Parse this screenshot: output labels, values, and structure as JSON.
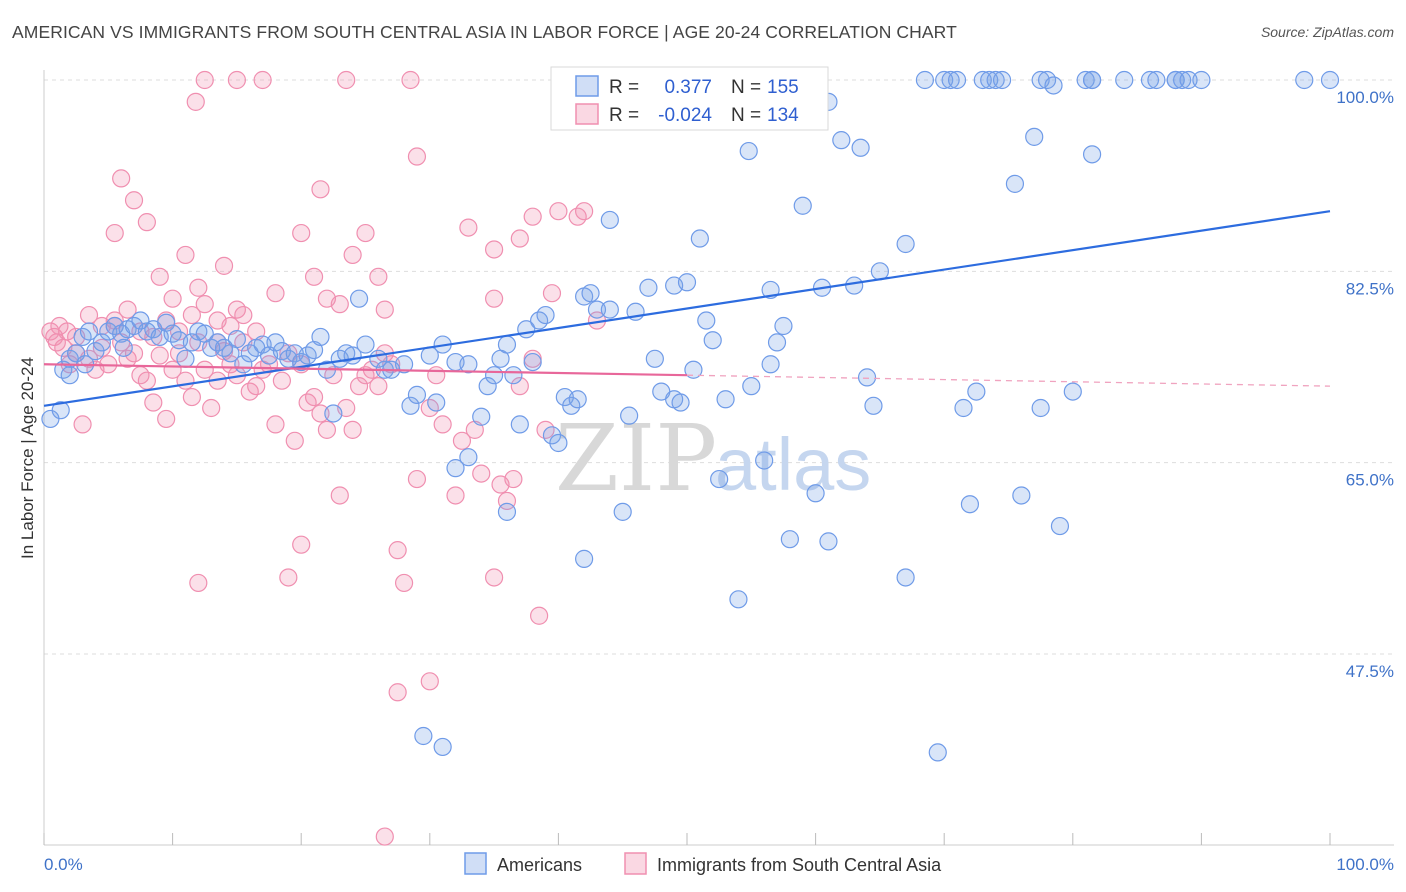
{
  "title": "AMERICAN VS IMMIGRANTS FROM SOUTH CENTRAL ASIA IN LABOR FORCE | AGE 20-24 CORRELATION CHART",
  "source": "Source: ZipAtlas.com",
  "watermark": {
    "zip": "ZIP",
    "atlas": "atlas"
  },
  "chart_data": {
    "type": "scatter",
    "ylabel": "In Labor Force | Age 20-24",
    "xlim": [
      0,
      100
    ],
    "ylim": [
      32,
      102
    ],
    "x_tick_labels": {
      "left": "0.0%",
      "right": "100.0%"
    },
    "y_ticks": [
      {
        "value": 100.0,
        "label": "100.0%"
      },
      {
        "value": 82.5,
        "label": "82.5%"
      },
      {
        "value": 65.0,
        "label": "65.0%"
      },
      {
        "value": 47.5,
        "label": "47.5%"
      }
    ],
    "legend_box": {
      "rows": [
        {
          "r_label": "R =",
          "r_value": "0.377",
          "n_label": "N =",
          "n_value": "155",
          "color": "#6f9be8"
        },
        {
          "r_label": "R =",
          "r_value": "-0.024",
          "n_label": "N =",
          "n_value": "134",
          "color": "#f08fb0"
        }
      ]
    },
    "series": [
      {
        "name": "Americans",
        "color": "#6f9be8",
        "fill": "rgba(120,160,230,0.28)",
        "trend": {
          "x1": 0,
          "y1": 70.2,
          "x2": 100,
          "y2": 88.0,
          "color": "#2d6cdf"
        },
        "points": [
          [
            0.5,
            69.0
          ],
          [
            1.3,
            69.8
          ],
          [
            1.5,
            73.5
          ],
          [
            2,
            74.5
          ],
          [
            2.5,
            75.0
          ],
          [
            3,
            76.5
          ],
          [
            3.5,
            77.0
          ],
          [
            4,
            75.2
          ],
          [
            4.5,
            76.0
          ],
          [
            5,
            77.0
          ],
          [
            5.5,
            77.5
          ],
          [
            6,
            76.8
          ],
          [
            6.5,
            77.2
          ],
          [
            7,
            77.5
          ],
          [
            7.5,
            78.0
          ],
          [
            8,
            77.0
          ],
          [
            8.5,
            77.2
          ],
          [
            9,
            76.5
          ],
          [
            9.5,
            77.8
          ],
          [
            10,
            76.8
          ],
          [
            10.5,
            76.2
          ],
          [
            11,
            74.5
          ],
          [
            11.5,
            76.0
          ],
          [
            12,
            77.0
          ],
          [
            12.5,
            76.8
          ],
          [
            13,
            75.5
          ],
          [
            13.5,
            76.0
          ],
          [
            14,
            75.5
          ],
          [
            14.5,
            75.0
          ],
          [
            15,
            76.3
          ],
          [
            15.5,
            74.0
          ],
          [
            16,
            75.0
          ],
          [
            16.5,
            75.5
          ],
          [
            17,
            75.8
          ],
          [
            17.5,
            74.8
          ],
          [
            18,
            76.0
          ],
          [
            18.5,
            75.2
          ],
          [
            19,
            74.5
          ],
          [
            19.5,
            75.0
          ],
          [
            20,
            74.2
          ],
          [
            20.5,
            74.8
          ],
          [
            21,
            75.3
          ],
          [
            21.5,
            76.5
          ],
          [
            22,
            73.5
          ],
          [
            22.5,
            69.5
          ],
          [
            23,
            74.5
          ],
          [
            23.5,
            75.0
          ],
          [
            24,
            74.8
          ],
          [
            24.5,
            80.0
          ],
          [
            25,
            75.8
          ],
          [
            26,
            74.5
          ],
          [
            26.5,
            73.5
          ],
          [
            27,
            73.5
          ],
          [
            28,
            74.0
          ],
          [
            28.5,
            70.2
          ],
          [
            29,
            71.2
          ],
          [
            30,
            74.8
          ],
          [
            30.5,
            70.5
          ],
          [
            31,
            75.8
          ],
          [
            32,
            74.2
          ],
          [
            32,
            64.5
          ],
          [
            33,
            74.0
          ],
          [
            33,
            65.5
          ],
          [
            34,
            69.2
          ],
          [
            34.5,
            72.0
          ],
          [
            35,
            73.0
          ],
          [
            35.5,
            74.5
          ],
          [
            36,
            75.8
          ],
          [
            36.5,
            73.0
          ],
          [
            37,
            68.5
          ],
          [
            37.5,
            77.2
          ],
          [
            38,
            74.2
          ],
          [
            38.5,
            78.0
          ],
          [
            39,
            78.5
          ],
          [
            39.5,
            67.5
          ],
          [
            40,
            66.8
          ],
          [
            40.5,
            71.0
          ],
          [
            41,
            70.2
          ],
          [
            41.5,
            70.8
          ],
          [
            42,
            56.2
          ],
          [
            42,
            80.2
          ],
          [
            42.5,
            80.5
          ],
          [
            43,
            79.0
          ],
          [
            44,
            79.0
          ],
          [
            44,
            87.2
          ],
          [
            45,
            60.5
          ],
          [
            45.5,
            69.3
          ],
          [
            46,
            78.8
          ],
          [
            47,
            81.0
          ],
          [
            47.5,
            74.5
          ],
          [
            48,
            71.5
          ],
          [
            49,
            70.8
          ],
          [
            49,
            81.2
          ],
          [
            49.5,
            70.5
          ],
          [
            50,
            81.5
          ],
          [
            50.5,
            73.5
          ],
          [
            51,
            85.5
          ],
          [
            51.5,
            78.0
          ],
          [
            52,
            76.2
          ],
          [
            52.5,
            63.5
          ],
          [
            53,
            70.8
          ],
          [
            54,
            52.5
          ],
          [
            54.5,
            100.0
          ],
          [
            54.8,
            93.5
          ],
          [
            55,
            72.0
          ],
          [
            56,
            65.2
          ],
          [
            56.5,
            74.0
          ],
          [
            56.5,
            80.8
          ],
          [
            57,
            76.0
          ],
          [
            57.5,
            77.5
          ],
          [
            58,
            58.0
          ],
          [
            59,
            88.5
          ],
          [
            60,
            62.2
          ],
          [
            60.5,
            81.0
          ],
          [
            61,
            98.0
          ],
          [
            61,
            57.8
          ],
          [
            62,
            94.5
          ],
          [
            63,
            81.2
          ],
          [
            63.5,
            93.8
          ],
          [
            64,
            72.8
          ],
          [
            64.5,
            70.2
          ],
          [
            65,
            82.5
          ],
          [
            67,
            85.0
          ],
          [
            67,
            54.5
          ],
          [
            68.5,
            100.0
          ],
          [
            70,
            100.0
          ],
          [
            70.5,
            100.0
          ],
          [
            71,
            100.0
          ],
          [
            71.5,
            70.0
          ],
          [
            72,
            61.2
          ],
          [
            73,
            100.0
          ],
          [
            73.5,
            100.0
          ],
          [
            74,
            100.0
          ],
          [
            74.5,
            100.0
          ],
          [
            75.5,
            90.5
          ],
          [
            76,
            62.0
          ],
          [
            77,
            94.8
          ],
          [
            77.5,
            100.0
          ],
          [
            78,
            100.0
          ],
          [
            78.5,
            99.5
          ],
          [
            79,
            59.2
          ],
          [
            80,
            71.5
          ],
          [
            81,
            100.0
          ],
          [
            81.5,
            100.0
          ],
          [
            81.5,
            100.0
          ],
          [
            81.5,
            93.2
          ],
          [
            84,
            100.0
          ],
          [
            86,
            100.0
          ],
          [
            86.5,
            100.0
          ],
          [
            88,
            100.0
          ],
          [
            88,
            100.0
          ],
          [
            88.5,
            100.0
          ],
          [
            89,
            100.0
          ],
          [
            90,
            100.0
          ],
          [
            98,
            100.0
          ],
          [
            100,
            100.0
          ],
          [
            77.5,
            70.0
          ],
          [
            72.5,
            71.5
          ],
          [
            36,
            60.5
          ],
          [
            31,
            39.0
          ],
          [
            29.5,
            40.0
          ],
          [
            69.5,
            38.5
          ],
          [
            2.0,
            73.0
          ],
          [
            3.2,
            74.0
          ],
          [
            6.2,
            75.5
          ]
        ]
      },
      {
        "name": "Immigrants from South Central Asia",
        "color": "#f08fb0",
        "fill": "rgba(240,143,176,0.28)",
        "trend": {
          "x1": 0,
          "y1": 74.0,
          "x2": 50,
          "y2": 73.0,
          "color": "#e8679a"
        },
        "trend_dashed": {
          "x1": 50,
          "y1": 73.0,
          "x2": 100,
          "y2": 72.0,
          "color": "#f0a3bf"
        },
        "points": [
          [
            0.5,
            77.0
          ],
          [
            0.8,
            76.5
          ],
          [
            1,
            76.0
          ],
          [
            1.2,
            77.5
          ],
          [
            1.5,
            75.5
          ],
          [
            2,
            74.0
          ],
          [
            2.5,
            75.0
          ],
          [
            3,
            68.5
          ],
          [
            3.5,
            74.5
          ],
          [
            4,
            73.5
          ],
          [
            4.5,
            75.5
          ],
          [
            5,
            74.0
          ],
          [
            5.5,
            77.5
          ],
          [
            6,
            76.0
          ],
          [
            6.5,
            74.5
          ],
          [
            7,
            75.0
          ],
          [
            7.5,
            73.0
          ],
          [
            8,
            72.5
          ],
          [
            8.5,
            70.5
          ],
          [
            9,
            74.8
          ],
          [
            9.5,
            69.0
          ],
          [
            10,
            73.5
          ],
          [
            10.5,
            75.0
          ],
          [
            11,
            72.5
          ],
          [
            11.5,
            71.0
          ],
          [
            12,
            76.0
          ],
          [
            12.5,
            73.5
          ],
          [
            13,
            70.0
          ],
          [
            13.5,
            72.5
          ],
          [
            14,
            75.2
          ],
          [
            14.5,
            74.0
          ],
          [
            15,
            73.0
          ],
          [
            15.5,
            76.0
          ],
          [
            16,
            71.5
          ],
          [
            16.5,
            72.0
          ],
          [
            17,
            73.5
          ],
          [
            17.5,
            74.0
          ],
          [
            18,
            68.5
          ],
          [
            18.5,
            72.5
          ],
          [
            19,
            75.0
          ],
          [
            19.5,
            67.0
          ],
          [
            20,
            74.0
          ],
          [
            20.5,
            70.5
          ],
          [
            21,
            71.0
          ],
          [
            21.5,
            69.5
          ],
          [
            22,
            68.0
          ],
          [
            22.5,
            73.0
          ],
          [
            23,
            62.0
          ],
          [
            23.5,
            70.0
          ],
          [
            24,
            68.0
          ],
          [
            24.5,
            72.0
          ],
          [
            25,
            73.0
          ],
          [
            25.5,
            73.5
          ],
          [
            26,
            72.0
          ],
          [
            26.5,
            75.0
          ],
          [
            27,
            74.0
          ],
          [
            27.5,
            57.0
          ],
          [
            28,
            54.0
          ],
          [
            29,
            63.5
          ],
          [
            30,
            70.0
          ],
          [
            30.5,
            73.0
          ],
          [
            31,
            68.5
          ],
          [
            32,
            62.0
          ],
          [
            32.5,
            67.0
          ],
          [
            33.5,
            68.0
          ],
          [
            34,
            64.0
          ],
          [
            35,
            80.0
          ],
          [
            35.5,
            63.0
          ],
          [
            36,
            61.5
          ],
          [
            36.5,
            63.5
          ],
          [
            37,
            72.0
          ],
          [
            38,
            74.5
          ],
          [
            38.5,
            51.0
          ],
          [
            39,
            68.0
          ],
          [
            20,
            57.5
          ],
          [
            19,
            54.5
          ],
          [
            15,
            79.0
          ],
          [
            14,
            83.0
          ],
          [
            13.5,
            78.0
          ],
          [
            12,
            81.0
          ],
          [
            11,
            84.0
          ],
          [
            10,
            80.0
          ],
          [
            9,
            82.0
          ],
          [
            8,
            87.0
          ],
          [
            7,
            89.0
          ],
          [
            6,
            91.0
          ],
          [
            5.5,
            86.0
          ],
          [
            11.8,
            98.0
          ],
          [
            12.5,
            100.0
          ],
          [
            15,
            100.0
          ],
          [
            17,
            100.0
          ],
          [
            23.5,
            100.0
          ],
          [
            28.5,
            100.0
          ],
          [
            33,
            86.5
          ],
          [
            35,
            84.5
          ],
          [
            37,
            85.5
          ],
          [
            38,
            87.5
          ],
          [
            40,
            88.0
          ],
          [
            42,
            88.0
          ],
          [
            41.5,
            87.5
          ],
          [
            39.5,
            80.5
          ],
          [
            43,
            78.0
          ],
          [
            29,
            93.0
          ],
          [
            26.5,
            79.0
          ],
          [
            25,
            86.0
          ],
          [
            22,
            80.0
          ],
          [
            21,
            82.0
          ],
          [
            20,
            86.0
          ],
          [
            21.5,
            90.0
          ],
          [
            24,
            84.0
          ],
          [
            23,
            79.5
          ],
          [
            26,
            82.0
          ],
          [
            18,
            80.5
          ],
          [
            16.5,
            77.0
          ],
          [
            15.5,
            78.5
          ],
          [
            14.5,
            77.5
          ],
          [
            13.5,
            76.0
          ],
          [
            12.5,
            79.5
          ],
          [
            11.5,
            78.5
          ],
          [
            10.5,
            77.0
          ],
          [
            9.5,
            78.0
          ],
          [
            8.5,
            76.5
          ],
          [
            7.5,
            77.0
          ],
          [
            6.5,
            79.0
          ],
          [
            5.5,
            78.0
          ],
          [
            4.5,
            77.5
          ],
          [
            3.5,
            78.5
          ],
          [
            2.5,
            76.5
          ],
          [
            1.8,
            77.0
          ],
          [
            27.5,
            44.0
          ],
          [
            35,
            54.5
          ],
          [
            30,
            45.0
          ],
          [
            26.5,
            30.8
          ],
          [
            12,
            54.0
          ]
        ]
      }
    ]
  },
  "bottom_legend": [
    {
      "label": "Americans",
      "color": "#6f9be8"
    },
    {
      "label": "Immigrants from South Central Asia",
      "color": "#f08fb0"
    }
  ]
}
